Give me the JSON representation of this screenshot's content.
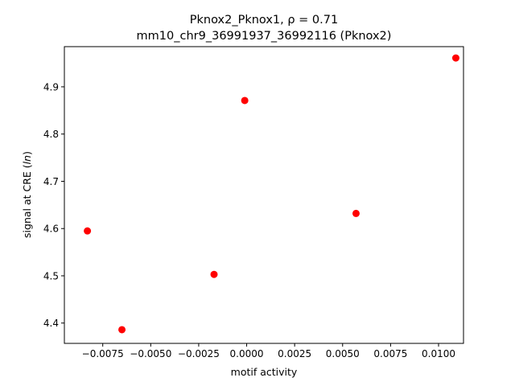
{
  "chart_data": {
    "type": "scatter",
    "title_line1": "Pknox2_Pknox1, ρ = 0.71",
    "title_line2": "mm10_chr9_36991937_36992116 (Pknox2)",
    "xlabel": "motif activity",
    "ylabel_prefix": "signal at CRE (",
    "ylabel_italic": "ln",
    "ylabel_suffix": ")",
    "xlim": [
      -0.0095,
      0.0113
    ],
    "ylim": [
      4.357,
      4.985
    ],
    "x_ticks": [
      -0.0075,
      -0.005,
      -0.0025,
      0.0,
      0.0025,
      0.005,
      0.0075,
      0.01
    ],
    "x_tick_labels": [
      "−0.0075",
      "−0.0050",
      "−0.0025",
      "0.0000",
      "0.0025",
      "0.0050",
      "0.0075",
      "0.0100"
    ],
    "y_ticks": [
      4.4,
      4.5,
      4.6,
      4.7,
      4.8,
      4.9
    ],
    "y_tick_labels": [
      "4.4",
      "4.5",
      "4.6",
      "4.7",
      "4.8",
      "4.9"
    ],
    "marker_color": "#ff0000",
    "grid": false,
    "points": [
      {
        "x": -0.0083,
        "y": 4.595
      },
      {
        "x": -0.0065,
        "y": 4.386
      },
      {
        "x": -0.0017,
        "y": 4.503
      },
      {
        "x": -0.0001,
        "y": 4.871
      },
      {
        "x": 0.0057,
        "y": 4.632
      },
      {
        "x": 0.0109,
        "y": 4.961
      }
    ]
  }
}
